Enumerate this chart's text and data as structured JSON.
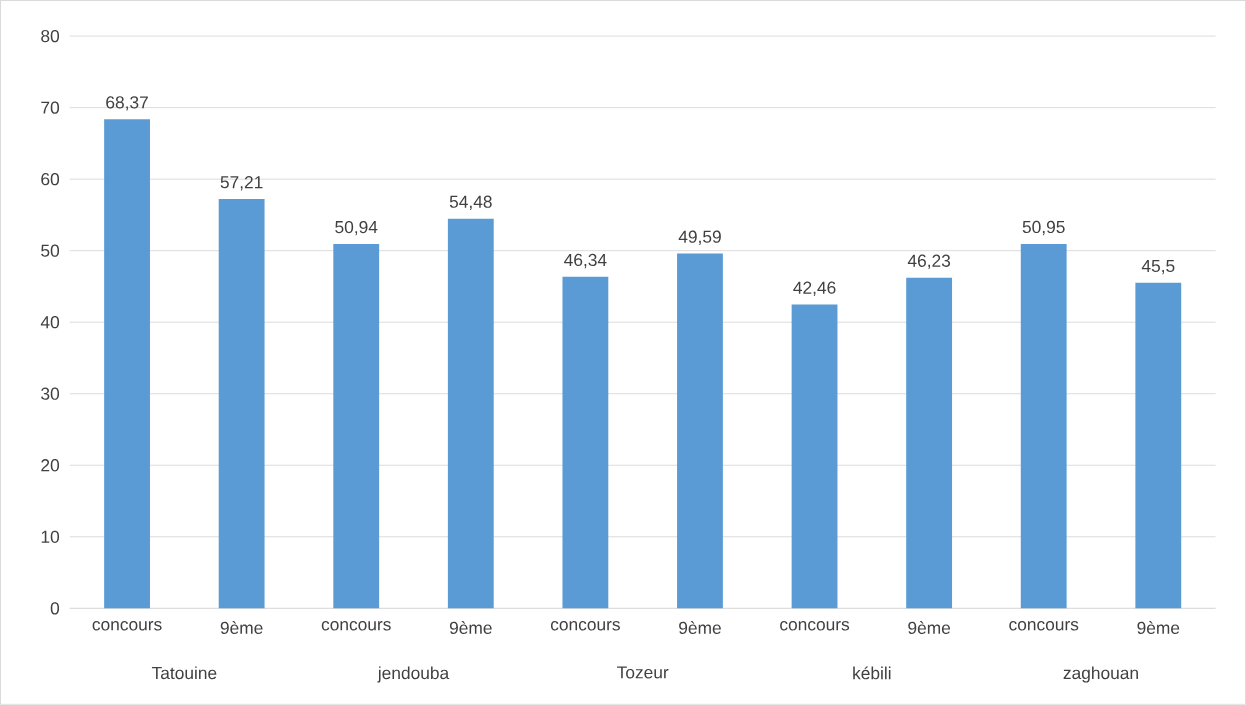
{
  "chart_data": {
    "type": "bar",
    "categories": [
      "concours",
      "9ème",
      "concours",
      "9ème",
      "concours",
      "9ème",
      "concours",
      "9ème",
      "concours",
      "9ème"
    ],
    "values": [
      68.37,
      57.21,
      50.94,
      54.48,
      46.34,
      49.59,
      42.46,
      46.23,
      50.95,
      45.5
    ],
    "color": "#5b9bd5",
    "ylim": [
      0,
      80
    ],
    "yticks": [
      0,
      10,
      20,
      30,
      40,
      50,
      60,
      70,
      80
    ],
    "value_labels": [
      "68,37",
      "57,21",
      "50,94",
      "54,48",
      "46,34",
      "49,59",
      "42,46",
      "46,23",
      "50,95",
      "45,5"
    ],
    "grid": "y",
    "annotations": [
      "Tatouine",
      "jendouba",
      "Tozeur",
      "kébili",
      "zaghouan"
    ]
  }
}
